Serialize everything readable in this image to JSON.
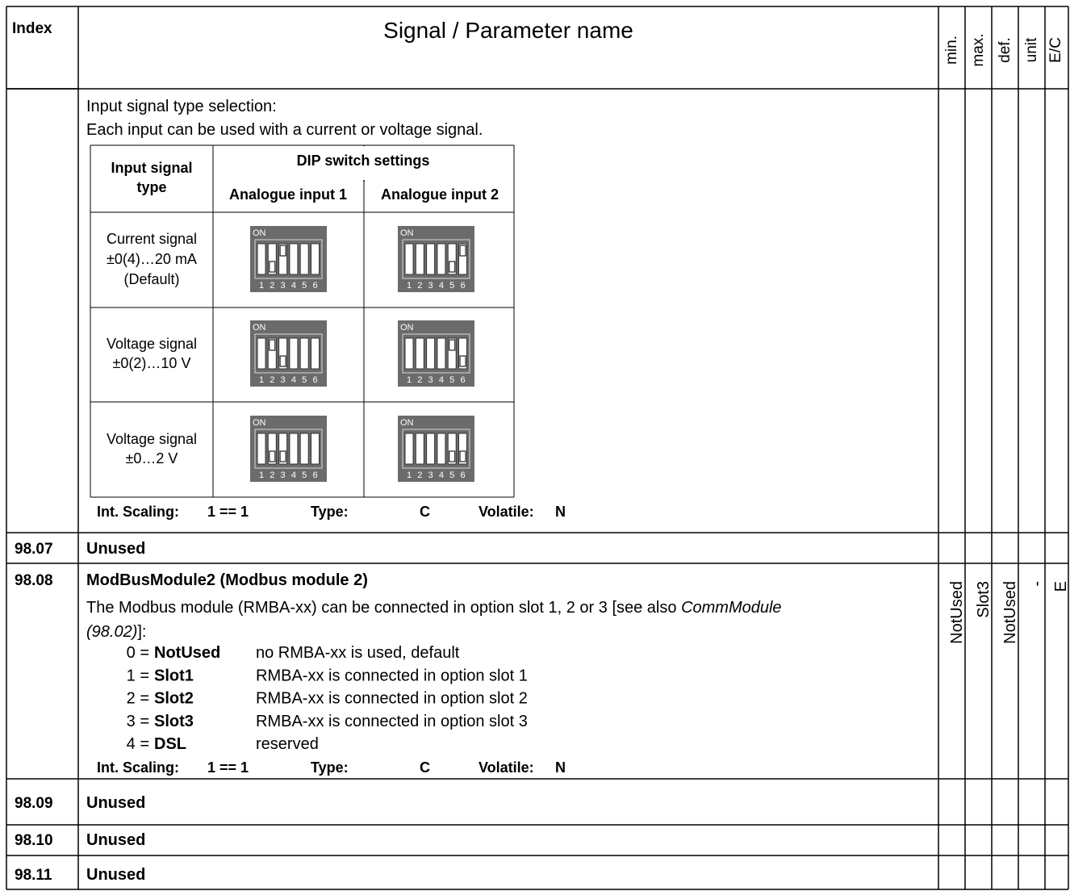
{
  "header": {
    "index": "Index",
    "name": "Signal / Parameter name",
    "min": "min.",
    "max": "max.",
    "def": "def.",
    "unit": "unit",
    "ec": "E/C"
  },
  "rows": [
    {
      "intro": [
        "Input signal type selection:",
        "Each input can be used with a current or voltage signal."
      ],
      "dip_table": {
        "header": {
          "type": [
            "Input signal",
            "type"
          ],
          "dip": "DIP switch settings",
          "input1": "Analogue input 1",
          "input2": "Analogue input 2"
        },
        "switch_on_label": "ON",
        "switch_numbers": [
          "1",
          "2",
          "3",
          "4",
          "5",
          "6"
        ],
        "rows": [
          {
            "type": [
              "Current signal",
              "±0(4)…20 mA",
              "(Default)"
            ]
          },
          {
            "type": [
              "Voltage signal",
              "±0(2)…10 V"
            ]
          },
          {
            "type": [
              "Voltage signal",
              "±0…2 V"
            ]
          }
        ]
      },
      "scaling": {
        "label": "Int. Scaling:",
        "value": "1 == 1",
        "type_label": "Type:",
        "type": "C",
        "volatile_label": "Volatile:",
        "volatile": "N"
      }
    },
    {
      "index": "98.07",
      "name": "Unused"
    },
    {
      "index": "98.08",
      "name": "ModBusModule2 (Modbus module 2)",
      "description": [
        "The Modbus module (RMBA-xx) can be connected in option slot 1, 2 or 3 [see also ",
        "CommModule",
        "(98.02)",
        "]:"
      ],
      "options": [
        {
          "code": "0 =",
          "name": "NotUsed",
          "text": "no RMBA-xx is used, default"
        },
        {
          "code": "1 =",
          "name": "Slot1",
          "text": "RMBA-xx is connected in option slot 1"
        },
        {
          "code": "2 =",
          "name": "Slot2",
          "text": "RMBA-xx is connected in option slot 2"
        },
        {
          "code": "3 =",
          "name": "Slot3",
          "text": "RMBA-xx is connected in option slot 3"
        },
        {
          "code": "4 =",
          "name": "DSL",
          "text": "reserved"
        }
      ],
      "scaling": {
        "label": "Int. Scaling:",
        "value": "1 == 1",
        "type_label": "Type:",
        "type": "C",
        "volatile_label": "Volatile:",
        "volatile": "N"
      },
      "min": "NotUsed",
      "max": "Slot3",
      "def": "NotUsed",
      "unit": "-",
      "ec": "E"
    },
    {
      "index": "98.09",
      "name": "Unused"
    },
    {
      "index": "98.10",
      "name": "Unused"
    },
    {
      "index": "98.11",
      "name": "Unused"
    }
  ]
}
